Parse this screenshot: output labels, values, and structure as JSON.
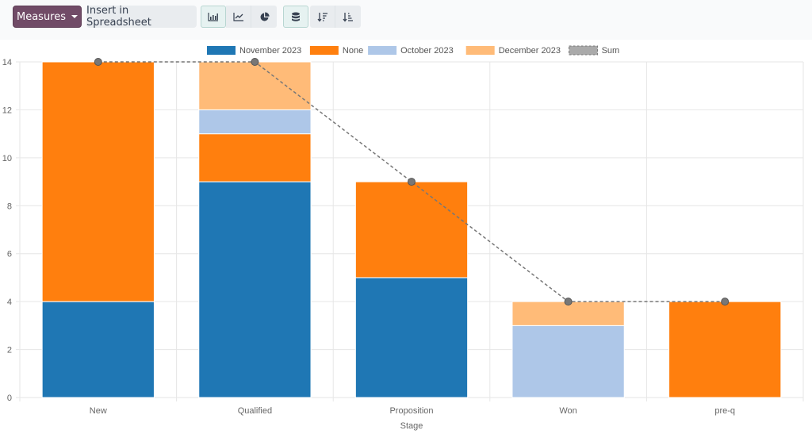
{
  "toolbar": {
    "measures_label": "Measures",
    "insert_label": "Insert in Spreadsheet",
    "chart_type_buttons": [
      {
        "icon": "bar-chart-icon",
        "active": true
      },
      {
        "icon": "line-chart-icon",
        "active": false
      },
      {
        "icon": "pie-chart-icon",
        "active": false
      }
    ],
    "stacked_button": {
      "icon": "database-stack-icon",
      "active": true
    },
    "sort_buttons": [
      {
        "icon": "sort-descending-icon"
      },
      {
        "icon": "sort-ascending-icon"
      }
    ]
  },
  "colors": {
    "November 2023": "#1f77b4",
    "None": "#ff7f0e",
    "October 2023": "#aec7e8",
    "December 2023": "#ffbb78",
    "Sum": "#777777",
    "accent": "#714b67"
  },
  "chart_data": {
    "type": "bar",
    "stacked": true,
    "title": "",
    "xlabel": "Stage",
    "ylabel": "",
    "ylim": [
      0,
      14
    ],
    "yticks": [
      0,
      2,
      4,
      6,
      8,
      10,
      12,
      14
    ],
    "grid": true,
    "legend_position": "top",
    "categories": [
      "New",
      "Qualified",
      "Proposition",
      "Won",
      "pre-q"
    ],
    "series": [
      {
        "name": "November 2023",
        "values": [
          4,
          9,
          5,
          0,
          0
        ]
      },
      {
        "name": "None",
        "values": [
          10,
          2,
          4,
          0,
          4
        ]
      },
      {
        "name": "October 2023",
        "values": [
          0,
          1,
          0,
          3,
          0
        ]
      },
      {
        "name": "December 2023",
        "values": [
          0,
          2,
          0,
          1,
          0
        ]
      }
    ],
    "line_series": {
      "name": "Sum",
      "style": "dashed",
      "values": [
        14,
        14,
        9,
        4,
        4
      ]
    }
  }
}
